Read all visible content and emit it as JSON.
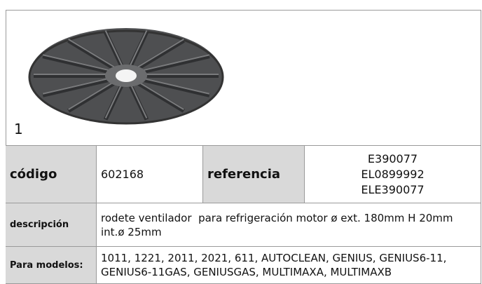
{
  "item_number": "1",
  "table": {
    "rows": [
      [
        "código",
        "602168",
        "referencia",
        [
          "E390077",
          "EL0899992",
          "ELE390077"
        ]
      ],
      [
        "descripción",
        "rodete ventilador  para refrigeración motor ø ext. 180mm H 20mm int.ø 25mm"
      ],
      [
        "Para modelos:",
        "1011, 1221, 2011, 2021, 611, AUTOCLEAN, GENIUS, GENIUS6-11, GENIUS6-11GAS, GENIUSGAS, MULTIMAXA, MULTIMAXB"
      ]
    ]
  }
}
